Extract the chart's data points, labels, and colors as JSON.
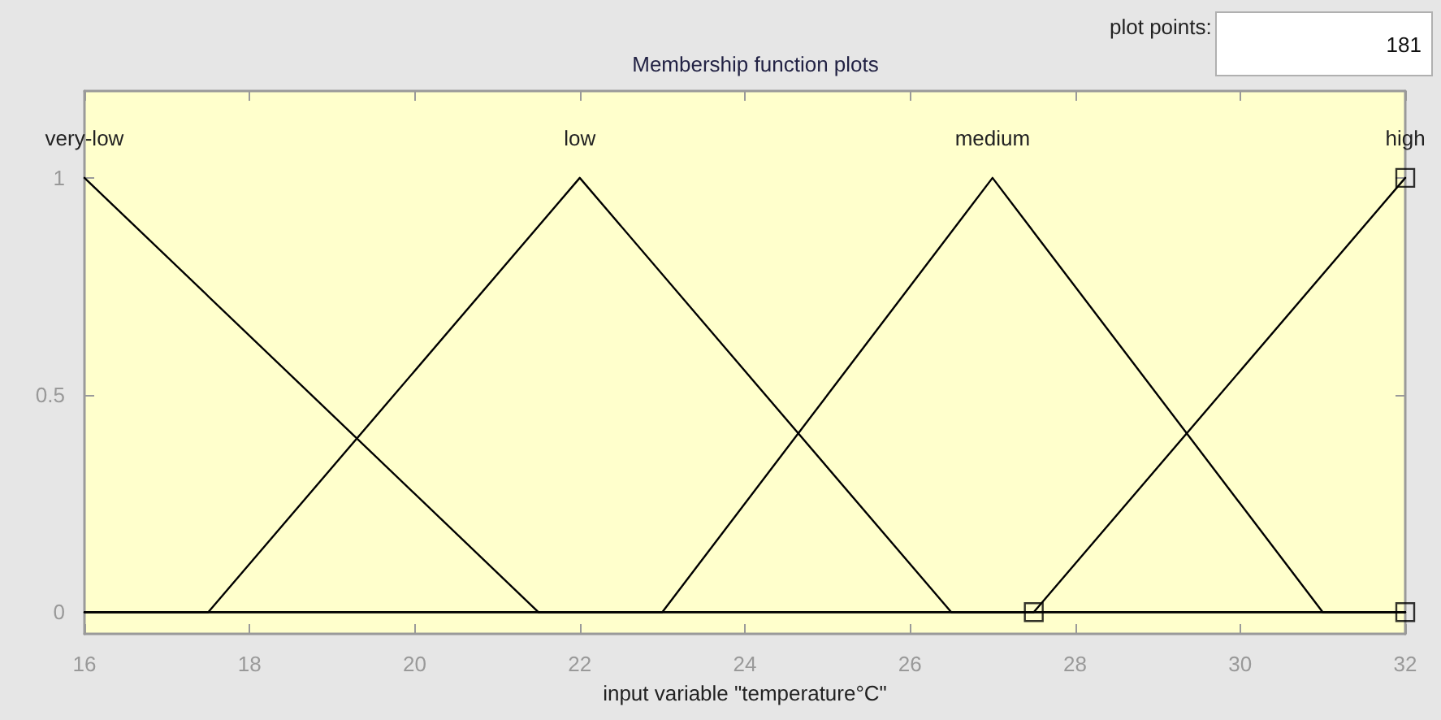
{
  "chart_data": {
    "type": "line",
    "title": "Membership function plots",
    "xlabel": "input variable \"temperature°C\"",
    "annotations": [
      "plot points:",
      "181"
    ],
    "series": [
      {
        "name": "very-low",
        "color": "#000000",
        "x": [
          16,
          21.5,
          32
        ],
        "values": [
          1,
          0,
          0
        ]
      },
      {
        "name": "low",
        "color": "#000000",
        "x": [
          16,
          17.5,
          22,
          26.5,
          32
        ],
        "values": [
          0,
          0,
          1,
          0,
          0
        ]
      },
      {
        "name": "medium",
        "color": "#000000",
        "x": [
          16,
          23,
          27,
          31,
          32
        ],
        "values": [
          0,
          0,
          1,
          0,
          0
        ]
      },
      {
        "name": "high",
        "color": "#000000",
        "x": [
          16,
          27.5,
          32
        ],
        "values": [
          0,
          0,
          1
        ]
      },
      {
        "type": "scatter",
        "marker": "square",
        "color": "#000000",
        "x": [
          27.5,
          32,
          32
        ],
        "values": [
          0,
          1,
          0
        ]
      }
    ],
    "xlim": [
      16,
      32
    ],
    "xticks": [
      16,
      18,
      20,
      22,
      24,
      26,
      28,
      30,
      32
    ],
    "ylim": [
      -0.05,
      1.2
    ],
    "yticks": [
      0,
      0.5,
      1
    ],
    "grid": false,
    "legend": false,
    "marker": "none",
    "line_style": "solid"
  }
}
